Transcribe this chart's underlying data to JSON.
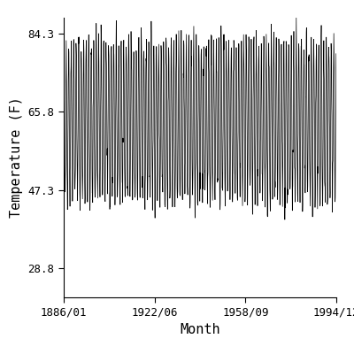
{
  "title": "",
  "xlabel": "Month",
  "ylabel": "Temperature (F)",
  "start_year": 1886,
  "start_month": 1,
  "end_year": 1994,
  "end_month": 12,
  "yticks": [
    28.8,
    47.3,
    65.8,
    84.3
  ],
  "xtick_labels": [
    "1886/01",
    "1922/06",
    "1958/09",
    "1994/12"
  ],
  "xtick_years": [
    1886.0,
    1922.417,
    1958.667,
    1994.917
  ],
  "annual_mean": 63.5,
  "annual_amplitude": 18.5,
  "noise_std": 2.5,
  "line_color": "#000000",
  "line_width": 0.5,
  "bg_color": "#ffffff",
  "figsize": [
    4.0,
    4.0
  ],
  "dpi": 100,
  "ylim": [
    22.0,
    88.0
  ]
}
